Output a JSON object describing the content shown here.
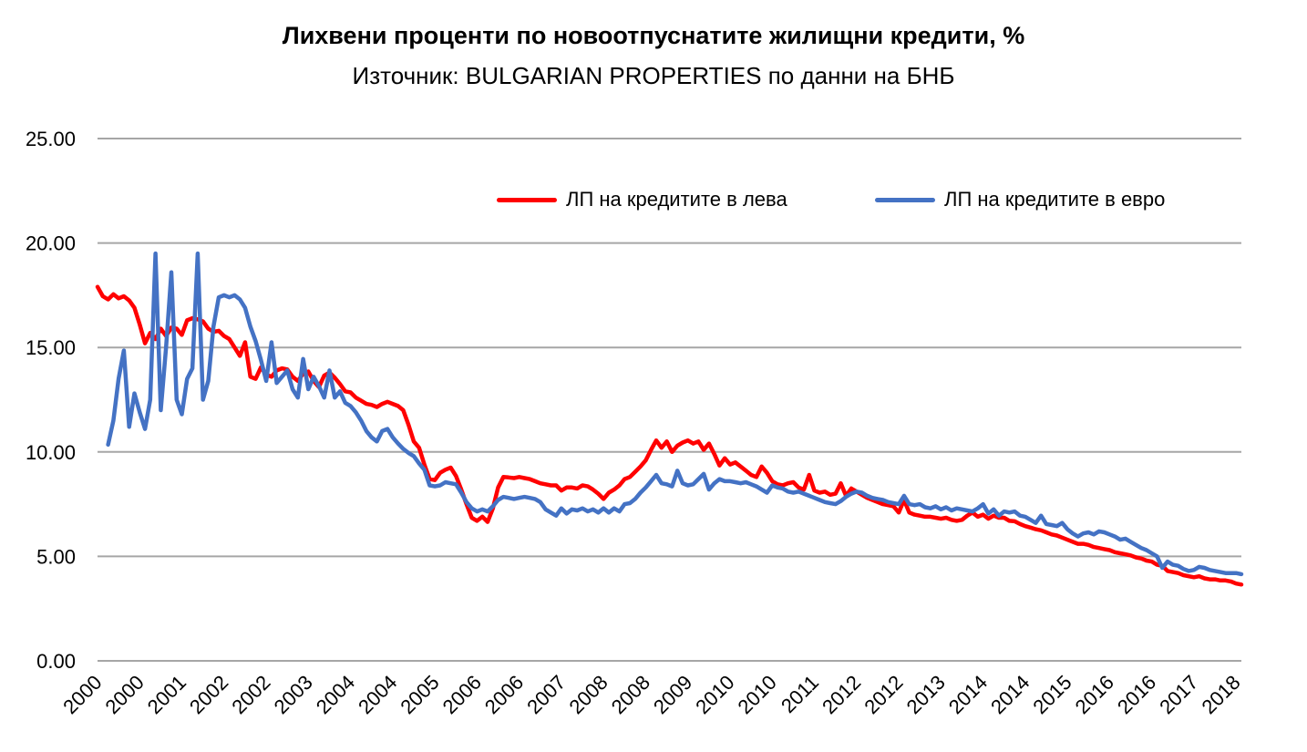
{
  "header": {
    "title": "Лихвени проценти по новоотпуснатите жилищни кредити, %",
    "subtitle": "Източник: BULGARIAN PROPERTIES по данни на БНБ"
  },
  "colors": {
    "leva_line": "#FF0000",
    "euro_line": "#4472C4",
    "gridline": "#A6A6A6",
    "text": "#000000",
    "background": "#FFFFFF"
  },
  "chart_data": {
    "type": "line",
    "title": "Лихвени проценти по новоотпуснатите жилищни кредити, %",
    "subtitle": "Източник: BULGARIAN PROPERTIES по данни на БНБ",
    "xlabel": "",
    "ylabel": "",
    "ylim": [
      0,
      25
    ],
    "y_tick_labels": [
      "0.00",
      "5.00",
      "10.00",
      "15.00",
      "20.00",
      "25.00"
    ],
    "grid": true,
    "legend_position": "top-inside",
    "frequency": "monthly",
    "x_start": "2000-01",
    "x_end": "2018-02",
    "x_tick_interval_months": 8,
    "x_tick_labels": [
      "2000",
      "2000",
      "2001",
      "2002",
      "2002",
      "2003",
      "2004",
      "2004",
      "2005",
      "2006",
      "2006",
      "2007",
      "2008",
      "2008",
      "2009",
      "2010",
      "2010",
      "2011",
      "2012",
      "2012",
      "2013",
      "2014",
      "2014",
      "2015",
      "2016",
      "2016",
      "2017",
      "2018"
    ],
    "series": [
      {
        "name": "ЛП на кредитите в лева",
        "color": "#FF0000",
        "values": [
          17.9,
          17.45,
          17.3,
          17.55,
          17.35,
          17.45,
          17.25,
          16.9,
          16.1,
          15.2,
          15.7,
          15.4,
          15.9,
          15.55,
          15.95,
          15.9,
          15.6,
          16.3,
          16.4,
          16.35,
          16.25,
          15.9,
          15.75,
          15.8,
          15.55,
          15.4,
          15.0,
          14.6,
          15.25,
          13.6,
          13.5,
          14.05,
          13.7,
          13.6,
          13.9,
          14.0,
          13.95,
          13.6,
          13.4,
          13.75,
          13.85,
          13.4,
          13.1,
          13.65,
          13.8,
          13.55,
          13.25,
          12.9,
          12.85,
          12.6,
          12.45,
          12.3,
          12.25,
          12.15,
          12.3,
          12.4,
          12.3,
          12.2,
          12.0,
          11.3,
          10.5,
          10.2,
          9.4,
          8.7,
          8.65,
          9.0,
          9.15,
          9.25,
          8.85,
          8.2,
          7.5,
          6.85,
          6.7,
          6.9,
          6.65,
          7.3,
          8.3,
          8.8,
          8.78,
          8.75,
          8.8,
          8.75,
          8.7,
          8.6,
          8.5,
          8.45,
          8.4,
          8.4,
          8.15,
          8.3,
          8.3,
          8.25,
          8.4,
          8.35,
          8.2,
          8.0,
          7.75,
          8.05,
          8.2,
          8.4,
          8.7,
          8.8,
          9.05,
          9.3,
          9.6,
          10.1,
          10.55,
          10.2,
          10.5,
          10.0,
          10.3,
          10.45,
          10.55,
          10.4,
          10.5,
          10.1,
          10.4,
          9.9,
          9.35,
          9.7,
          9.4,
          9.5,
          9.3,
          9.1,
          8.9,
          8.8,
          9.3,
          9.0,
          8.6,
          8.45,
          8.4,
          8.5,
          8.55,
          8.3,
          8.2,
          8.9,
          8.15,
          8.05,
          8.1,
          7.95,
          8.0,
          8.5,
          7.9,
          8.25,
          8.1,
          7.95,
          7.8,
          7.7,
          7.6,
          7.5,
          7.45,
          7.4,
          7.1,
          7.7,
          7.1,
          7.0,
          6.95,
          6.9,
          6.9,
          6.85,
          6.8,
          6.85,
          6.75,
          6.7,
          6.75,
          6.95,
          7.1,
          6.9,
          7.0,
          6.8,
          6.95,
          6.85,
          6.85,
          6.7,
          6.68,
          6.55,
          6.45,
          6.38,
          6.3,
          6.25,
          6.15,
          6.05,
          6.0,
          5.9,
          5.8,
          5.7,
          5.6,
          5.6,
          5.55,
          5.45,
          5.4,
          5.35,
          5.3,
          5.2,
          5.15,
          5.1,
          5.05,
          4.95,
          4.9,
          4.8,
          4.75,
          4.6,
          4.55,
          4.3,
          4.25,
          4.2,
          4.1,
          4.05,
          4.0,
          4.05,
          3.95,
          3.9,
          3.9,
          3.85,
          3.85,
          3.8,
          3.7,
          3.65
        ]
      },
      {
        "name": "ЛП на кредитите в евро",
        "color": "#4472C4",
        "values": [
          null,
          null,
          10.35,
          11.5,
          13.5,
          14.85,
          11.2,
          12.8,
          11.9,
          11.1,
          12.5,
          19.5,
          12.0,
          15.0,
          18.6,
          12.5,
          11.8,
          13.5,
          14.0,
          19.5,
          12.5,
          13.4,
          16.0,
          17.4,
          17.5,
          17.4,
          17.5,
          17.3,
          16.9,
          16.0,
          15.3,
          14.4,
          13.4,
          15.25,
          13.3,
          13.6,
          13.9,
          13.0,
          12.6,
          14.45,
          13.0,
          13.6,
          13.15,
          12.6,
          13.9,
          12.6,
          12.9,
          12.35,
          12.2,
          11.9,
          11.5,
          11.0,
          10.7,
          10.5,
          11.0,
          11.1,
          10.7,
          10.4,
          10.15,
          9.95,
          9.8,
          9.45,
          9.15,
          8.4,
          8.35,
          8.4,
          8.55,
          8.5,
          8.45,
          8.05,
          7.6,
          7.3,
          7.15,
          7.25,
          7.15,
          7.4,
          7.7,
          7.85,
          7.8,
          7.75,
          7.8,
          7.85,
          7.8,
          7.75,
          7.6,
          7.25,
          7.1,
          6.95,
          7.3,
          7.05,
          7.25,
          7.2,
          7.3,
          7.15,
          7.25,
          7.1,
          7.3,
          7.1,
          7.3,
          7.15,
          7.5,
          7.55,
          7.75,
          8.05,
          8.3,
          8.6,
          8.9,
          8.5,
          8.45,
          8.35,
          9.1,
          8.5,
          8.4,
          8.45,
          8.7,
          8.95,
          8.2,
          8.5,
          8.7,
          8.6,
          8.6,
          8.55,
          8.5,
          8.55,
          8.45,
          8.35,
          8.2,
          8.05,
          8.4,
          8.3,
          8.25,
          8.1,
          8.05,
          8.1,
          8.0,
          7.9,
          7.8,
          7.7,
          7.6,
          7.55,
          7.5,
          7.65,
          7.85,
          8.0,
          8.1,
          8.05,
          7.9,
          7.8,
          7.75,
          7.7,
          7.6,
          7.55,
          7.5,
          7.9,
          7.5,
          7.45,
          7.5,
          7.35,
          7.3,
          7.4,
          7.25,
          7.35,
          7.2,
          7.3,
          7.25,
          7.2,
          7.15,
          7.3,
          7.5,
          7.05,
          7.25,
          6.95,
          7.15,
          7.1,
          7.15,
          6.95,
          6.9,
          6.75,
          6.6,
          6.95,
          6.55,
          6.5,
          6.45,
          6.6,
          6.3,
          6.1,
          5.95,
          6.1,
          6.15,
          6.05,
          6.2,
          6.15,
          6.05,
          5.95,
          5.8,
          5.85,
          5.7,
          5.55,
          5.4,
          5.3,
          5.15,
          5.0,
          4.45,
          4.75,
          4.6,
          4.55,
          4.4,
          4.3,
          4.35,
          4.5,
          4.45,
          4.35,
          4.3,
          4.25,
          4.2,
          4.2,
          4.2,
          4.15
        ]
      }
    ]
  }
}
